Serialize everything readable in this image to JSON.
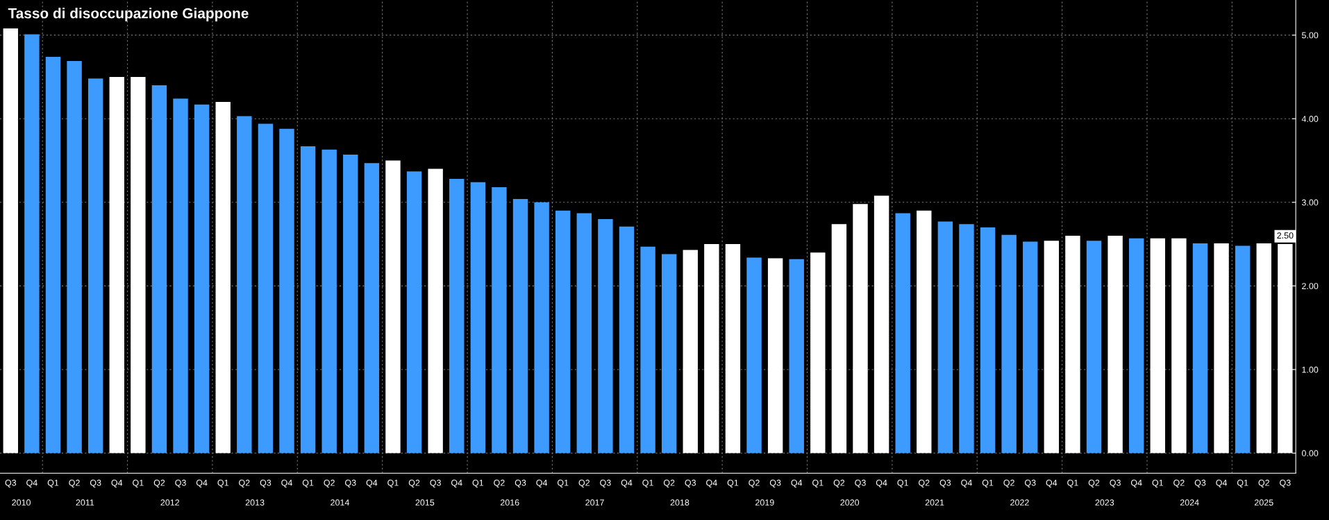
{
  "chart_data": {
    "type": "bar",
    "title": "Tasso di disoccupazione Giappone",
    "categories": [
      "Q3",
      "Q4",
      "Q1",
      "Q2",
      "Q3",
      "Q4",
      "Q1",
      "Q2",
      "Q3",
      "Q4",
      "Q1",
      "Q2",
      "Q3",
      "Q4",
      "Q1",
      "Q2",
      "Q3",
      "Q4",
      "Q1",
      "Q2",
      "Q3",
      "Q4",
      "Q1",
      "Q2",
      "Q3",
      "Q4",
      "Q1",
      "Q2",
      "Q3",
      "Q4",
      "Q1",
      "Q2",
      "Q3",
      "Q4",
      "Q1",
      "Q2",
      "Q3",
      "Q4",
      "Q1",
      "Q2",
      "Q3",
      "Q4",
      "Q1",
      "Q2",
      "Q3",
      "Q4",
      "Q1",
      "Q2",
      "Q3",
      "Q4",
      "Q1",
      "Q2",
      "Q3",
      "Q4",
      "Q1",
      "Q2",
      "Q3",
      "Q4",
      "Q1",
      "Q2",
      "Q3"
    ],
    "values": [
      5.08,
      5.01,
      4.74,
      4.69,
      4.48,
      4.5,
      4.5,
      4.4,
      4.24,
      4.17,
      4.2,
      4.03,
      3.94,
      3.88,
      3.67,
      3.63,
      3.57,
      3.47,
      3.5,
      3.37,
      3.4,
      3.28,
      3.24,
      3.18,
      3.04,
      3.0,
      2.9,
      2.87,
      2.8,
      2.71,
      2.47,
      2.38,
      2.43,
      2.5,
      2.5,
      2.34,
      2.33,
      2.32,
      2.4,
      2.74,
      2.98,
      3.08,
      2.87,
      2.9,
      2.77,
      2.74,
      2.7,
      2.61,
      2.53,
      2.54,
      2.6,
      2.54,
      2.6,
      2.57,
      2.57,
      2.57,
      2.51,
      2.51,
      2.48,
      2.51,
      2.5
    ],
    "colors": [
      "#ffffff",
      "#3d9bff",
      "#3d9bff",
      "#3d9bff",
      "#3d9bff",
      "#ffffff",
      "#ffffff",
      "#3d9bff",
      "#3d9bff",
      "#3d9bff",
      "#ffffff",
      "#3d9bff",
      "#3d9bff",
      "#3d9bff",
      "#3d9bff",
      "#3d9bff",
      "#3d9bff",
      "#3d9bff",
      "#ffffff",
      "#3d9bff",
      "#ffffff",
      "#3d9bff",
      "#3d9bff",
      "#3d9bff",
      "#3d9bff",
      "#3d9bff",
      "#3d9bff",
      "#3d9bff",
      "#3d9bff",
      "#3d9bff",
      "#3d9bff",
      "#3d9bff",
      "#ffffff",
      "#ffffff",
      "#ffffff",
      "#3d9bff",
      "#ffffff",
      "#3d9bff",
      "#ffffff",
      "#ffffff",
      "#ffffff",
      "#ffffff",
      "#3d9bff",
      "#ffffff",
      "#3d9bff",
      "#3d9bff",
      "#3d9bff",
      "#3d9bff",
      "#3d9bff",
      "#ffffff",
      "#ffffff",
      "#3d9bff",
      "#ffffff",
      "#3d9bff",
      "#ffffff",
      "#ffffff",
      "#3d9bff",
      "#ffffff",
      "#3d9bff",
      "#ffffff",
      "#ffffff"
    ],
    "value_labels": [
      null,
      null,
      null,
      null,
      null,
      null,
      null,
      null,
      null,
      null,
      null,
      null,
      null,
      null,
      null,
      null,
      null,
      null,
      null,
      null,
      null,
      null,
      null,
      null,
      null,
      null,
      null,
      null,
      null,
      null,
      null,
      null,
      null,
      null,
      null,
      null,
      null,
      null,
      null,
      null,
      null,
      null,
      null,
      null,
      null,
      null,
      null,
      null,
      null,
      null,
      null,
      null,
      null,
      null,
      null,
      null,
      null,
      null,
      null,
      null,
      "2.50"
    ],
    "annotations": [
      "2010",
      "2011",
      "2012",
      "2013",
      "2014",
      "2015",
      "2016",
      "2017",
      "2018",
      "2019",
      "2020",
      "2021",
      "2022",
      "2023",
      "2024",
      "2025"
    ],
    "ylim": [
      -0.24,
      5.42
    ],
    "yticks": [
      {
        "value": 0,
        "label": "0.00"
      },
      {
        "value": 1,
        "label": "1.00"
      },
      {
        "value": 2,
        "label": "2.00"
      },
      {
        "value": 3,
        "label": "3.00"
      },
      {
        "value": 4,
        "label": "4.00"
      },
      {
        "value": 5,
        "label": "5.00"
      }
    ],
    "grid": true
  }
}
